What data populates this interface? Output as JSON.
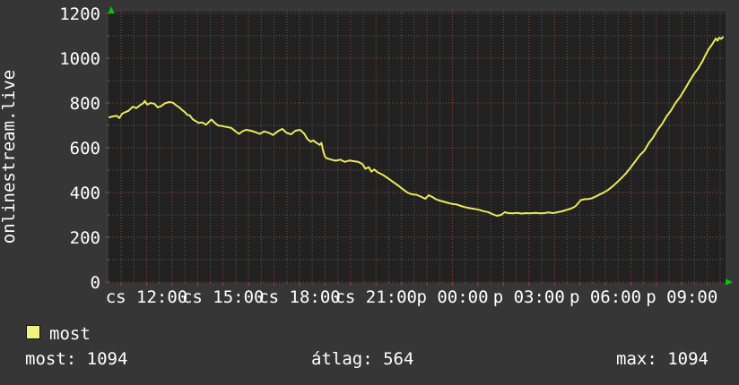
{
  "window": {
    "background_color": "#363636",
    "canvas_color": "#212121"
  },
  "legend": {
    "series_label": "most",
    "swatch_color": "#F2F280"
  },
  "stats": {
    "most_line": "most: 1094",
    "avg_line": "átlag: 564",
    "max_line": "max: 1094"
  },
  "colors": {
    "grid_major": "#9a4242",
    "grid_minor": "#5a5a5a",
    "series_line": "#E9E95C",
    "text": "#ffffff",
    "arrow": "#00CC00"
  },
  "chart_data": {
    "type": "line",
    "title": "",
    "ylabel": "onlinestream.live",
    "xlabel": "",
    "grid": "on",
    "legend_position": "bottom-left",
    "y_axis": {
      "min": 0,
      "max": 1200,
      "major_step": 200,
      "minor_step": 100,
      "ticks": [
        {
          "label": "0",
          "v": 0
        },
        {
          "label": "200",
          "v": 200
        },
        {
          "label": "400",
          "v": 400
        },
        {
          "label": "600",
          "v": 600
        },
        {
          "label": "800",
          "v": 800
        },
        {
          "label": "1000",
          "v": 1000
        },
        {
          "label": "1200",
          "v": 1200
        }
      ]
    },
    "x_axis": {
      "unit": "hours relative to cs 12:00",
      "min_hour": -1.46,
      "max_hour": 22.68,
      "minor_step_hours": 0.5,
      "major_step_hours": 1,
      "labeled_step_hours": 3,
      "ticks": [
        {
          "label": "cs 12:00",
          "h": 0
        },
        {
          "label": "cs 15:00",
          "h": 3
        },
        {
          "label": "cs 18:00",
          "h": 6
        },
        {
          "label": "cs 21:00",
          "h": 9
        },
        {
          "label": "p 00:00",
          "h": 12
        },
        {
          "label": "p 03:00",
          "h": 15
        },
        {
          "label": "p 06:00",
          "h": 18
        },
        {
          "label": "p 09:00",
          "h": 21
        }
      ]
    },
    "stats": {
      "most": 1094,
      "atlag": 564,
      "max": 1094
    },
    "series": [
      {
        "name": "most",
        "color": "#E9E95C",
        "points": [
          [
            -1.46,
            736
          ],
          [
            -1.32,
            740
          ],
          [
            -1.18,
            743
          ],
          [
            -1.07,
            733
          ],
          [
            -0.96,
            752
          ],
          [
            -0.82,
            760
          ],
          [
            -0.72,
            764
          ],
          [
            -0.54,
            783
          ],
          [
            -0.4,
            777
          ],
          [
            -0.26,
            790
          ],
          [
            -0.12,
            800
          ],
          [
            -0.07,
            809
          ],
          [
            0.02,
            793
          ],
          [
            0.16,
            800
          ],
          [
            0.3,
            797
          ],
          [
            0.44,
            780
          ],
          [
            0.58,
            787
          ],
          [
            0.72,
            799
          ],
          [
            0.89,
            804
          ],
          [
            1.04,
            801
          ],
          [
            1.14,
            791
          ],
          [
            1.28,
            780
          ],
          [
            1.39,
            769
          ],
          [
            1.49,
            760
          ],
          [
            1.6,
            747
          ],
          [
            1.7,
            744
          ],
          [
            1.81,
            727
          ],
          [
            1.91,
            720
          ],
          [
            2.05,
            711
          ],
          [
            2.19,
            713
          ],
          [
            2.33,
            703
          ],
          [
            2.47,
            718
          ],
          [
            2.54,
            726
          ],
          [
            2.65,
            714
          ],
          [
            2.79,
            700
          ],
          [
            2.96,
            697
          ],
          [
            3.14,
            693
          ],
          [
            3.32,
            689
          ],
          [
            3.49,
            673
          ],
          [
            3.63,
            662
          ],
          [
            3.77,
            674
          ],
          [
            3.91,
            680
          ],
          [
            4.09,
            676
          ],
          [
            4.26,
            670
          ],
          [
            4.44,
            662
          ],
          [
            4.61,
            673
          ],
          [
            4.79,
            667
          ],
          [
            4.96,
            657
          ],
          [
            5.14,
            673
          ],
          [
            5.32,
            684
          ],
          [
            5.49,
            667
          ],
          [
            5.67,
            660
          ],
          [
            5.84,
            676
          ],
          [
            6.02,
            680
          ],
          [
            6.19,
            662
          ],
          [
            6.3,
            640
          ],
          [
            6.44,
            627
          ],
          [
            6.54,
            633
          ],
          [
            6.65,
            623
          ],
          [
            6.79,
            613
          ],
          [
            6.86,
            622
          ],
          [
            6.93,
            585
          ],
          [
            7.0,
            560
          ],
          [
            7.07,
            553
          ],
          [
            7.25,
            547
          ],
          [
            7.42,
            542
          ],
          [
            7.6,
            547
          ],
          [
            7.77,
            537
          ],
          [
            7.95,
            543
          ],
          [
            8.12,
            540
          ],
          [
            8.3,
            537
          ],
          [
            8.47,
            527
          ],
          [
            8.58,
            507
          ],
          [
            8.72,
            513
          ],
          [
            8.82,
            493
          ],
          [
            8.93,
            503
          ],
          [
            9.07,
            490
          ],
          [
            9.28,
            478
          ],
          [
            9.49,
            462
          ],
          [
            9.7,
            445
          ],
          [
            9.88,
            430
          ],
          [
            10.05,
            415
          ],
          [
            10.23,
            400
          ],
          [
            10.4,
            392
          ],
          [
            10.58,
            390
          ],
          [
            10.75,
            382
          ],
          [
            10.93,
            372
          ],
          [
            11.07,
            388
          ],
          [
            11.21,
            380
          ],
          [
            11.35,
            370
          ],
          [
            11.49,
            364
          ],
          [
            11.63,
            360
          ],
          [
            11.81,
            354
          ],
          [
            11.98,
            349
          ],
          [
            12.16,
            347
          ],
          [
            12.33,
            340
          ],
          [
            12.51,
            334
          ],
          [
            12.68,
            330
          ],
          [
            12.86,
            327
          ],
          [
            13.04,
            323
          ],
          [
            13.21,
            317
          ],
          [
            13.39,
            313
          ],
          [
            13.56,
            304
          ],
          [
            13.74,
            296
          ],
          [
            13.91,
            300
          ],
          [
            14.05,
            312
          ],
          [
            14.19,
            308
          ],
          [
            14.37,
            307
          ],
          [
            14.54,
            309
          ],
          [
            14.72,
            306
          ],
          [
            14.89,
            308
          ],
          [
            15.07,
            307
          ],
          [
            15.25,
            309
          ],
          [
            15.42,
            307
          ],
          [
            15.6,
            308
          ],
          [
            15.77,
            311
          ],
          [
            15.95,
            308
          ],
          [
            16.12,
            312
          ],
          [
            16.3,
            316
          ],
          [
            16.47,
            322
          ],
          [
            16.65,
            328
          ],
          [
            16.82,
            338
          ],
          [
            16.93,
            352
          ],
          [
            17.04,
            366
          ],
          [
            17.18,
            370
          ],
          [
            17.32,
            371
          ],
          [
            17.46,
            374
          ],
          [
            17.6,
            381
          ],
          [
            17.77,
            391
          ],
          [
            17.95,
            401
          ],
          [
            18.12,
            413
          ],
          [
            18.3,
            429
          ],
          [
            18.47,
            447
          ],
          [
            18.65,
            467
          ],
          [
            18.82,
            487
          ],
          [
            19.0,
            513
          ],
          [
            19.18,
            540
          ],
          [
            19.35,
            567
          ],
          [
            19.53,
            587
          ],
          [
            19.7,
            620
          ],
          [
            19.88,
            647
          ],
          [
            20.05,
            680
          ],
          [
            20.23,
            707
          ],
          [
            20.4,
            740
          ],
          [
            20.58,
            767
          ],
          [
            20.75,
            800
          ],
          [
            20.93,
            827
          ],
          [
            21.11,
            860
          ],
          [
            21.28,
            893
          ],
          [
            21.46,
            927
          ],
          [
            21.63,
            953
          ],
          [
            21.81,
            987
          ],
          [
            21.91,
            1010
          ],
          [
            22.05,
            1040
          ],
          [
            22.19,
            1062
          ],
          [
            22.33,
            1088
          ],
          [
            22.4,
            1078
          ],
          [
            22.47,
            1092
          ],
          [
            22.54,
            1086
          ],
          [
            22.61,
            1094
          ]
        ]
      }
    ]
  }
}
